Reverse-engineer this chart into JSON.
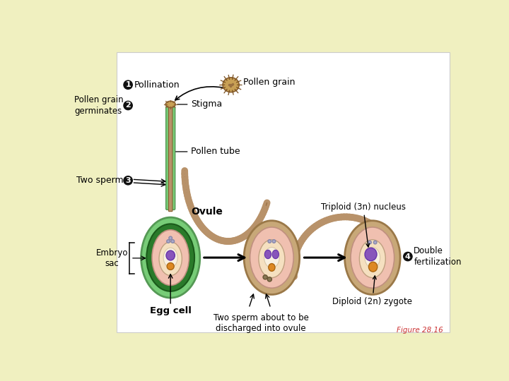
{
  "bg_color": "#f0f0c0",
  "panel_color": "#ffffff",
  "step1": "Pollination",
  "step2": "Pollen grain\ngerminates",
  "step3": "Two sperm",
  "step4": "Double\nfertilization",
  "pollen_grain_lbl": "Pollen grain",
  "stigma_lbl": "Stigma",
  "pollen_tube_lbl": "Pollen tube",
  "ovule_lbl": "Ovule",
  "embryo_sac_lbl": "Embryo\nsac",
  "egg_cell_lbl": "Egg cell",
  "two_sperm_lbl": "Two sperm about to be\ndischarged into ovule",
  "triploid_lbl": "Triploid (3n) nucleus",
  "diploid_lbl": "Diploid (2n) zygote",
  "figure_lbl": "Figure 28.16",
  "green_outer": "#77cc77",
  "green_dark": "#2a7a2a",
  "pink_inner": "#f0c0b0",
  "cream_inner": "#f5e0c0",
  "white_inner": "#f8f0e0",
  "purple_nuc": "#8855bb",
  "orange_egg": "#dd8822",
  "tan_tube": "#b8926a",
  "tan_shell": "#c8a878"
}
